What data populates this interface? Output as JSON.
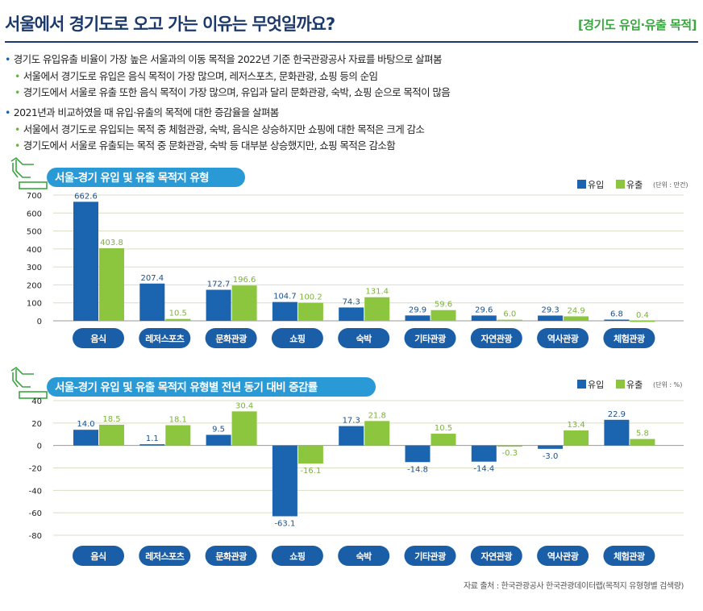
{
  "header": {
    "title": "서울에서 경기도로 오고 가는 이유는 무엇일까요?",
    "tag": "[경기도 유입·유출 목적]"
  },
  "bullets": [
    {
      "text": "경기도 유입유출 비율이 가장 높은 서울과의 이동 목적을 2022년 기준 한국관광공사 자료를 바탕으로 살펴봄",
      "subs": [
        "서울에서 경기도로 유입은 음식 목적이 가장 많으며, 레저스포츠, 문화관광, 쇼핑 등의 순임",
        "경기도에서 서울로 유출 또한 음식 목적이 가장 많으며, 유입과 달리 문화관광, 숙박, 쇼핑 순으로 목적이 많음"
      ]
    },
    {
      "text": "2021년과 비교하였을 때 유입·유출의 목적에 대한 증감율을 살펴봄",
      "subs": [
        "서울에서 경기도로 유입되는 목적 중 체험관광, 숙박, 음식은 상승하지만 쇼핑에 대한 목적은 크게 감소",
        "경기도에서 서울로 유출되는 목적 중 문화관광, 숙박 등 대부분 상승했지만, 쇼핑 목적은 감소함"
      ]
    }
  ],
  "colors": {
    "inflow": "#1b64b0",
    "outflow": "#8cc63f",
    "pill": "#1a5ea8",
    "banner": "#2a9ad6",
    "grid": "#dcdcc4"
  },
  "chart_data": [
    {
      "type": "bar",
      "title": "서울-경기 유입 및 유출 목적지 유형",
      "unit": "(단위 : 만건)",
      "categories": [
        "음식",
        "레저스포츠",
        "문화관광",
        "쇼핑",
        "숙박",
        "기타관광",
        "자연관광",
        "역사관광",
        "체험관광"
      ],
      "ylim": [
        0,
        700
      ],
      "yticks": [
        0,
        100,
        200,
        300,
        400,
        500,
        600,
        700
      ],
      "grid": true,
      "legend": "top-right",
      "series": [
        {
          "name": "유입",
          "values": [
            662.6,
            207.4,
            172.7,
            104.7,
            74.3,
            29.9,
            29.6,
            29.3,
            6.8
          ]
        },
        {
          "name": "유출",
          "values": [
            403.8,
            10.5,
            196.6,
            100.2,
            131.4,
            59.6,
            6.0,
            24.9,
            0.4
          ]
        }
      ]
    },
    {
      "type": "bar",
      "title": "서울-경기 유입 및 유출 목적지 유형별 전년 동기 대비 증감률",
      "unit": "(단위 : %)",
      "categories": [
        "음식",
        "레저스포츠",
        "문화관광",
        "쇼핑",
        "숙박",
        "기타관광",
        "자연관광",
        "역사관광",
        "체험관광"
      ],
      "ylim": [
        -80,
        40
      ],
      "yticks": [
        -80,
        -60,
        -40,
        -20,
        0,
        20,
        40
      ],
      "grid": true,
      "legend": "top-right",
      "series": [
        {
          "name": "유입",
          "values": [
            14.0,
            1.1,
            9.5,
            -63.1,
            17.3,
            -14.8,
            -14.4,
            -3.0,
            22.9
          ]
        },
        {
          "name": "유출",
          "values": [
            18.5,
            18.1,
            30.4,
            -16.1,
            21.8,
            10.5,
            -0.3,
            13.4,
            5.8
          ]
        }
      ]
    }
  ],
  "source": "자료 출처 : 한국관광공사 한국관광데이터랩(목적지 유형형별 검색량)"
}
